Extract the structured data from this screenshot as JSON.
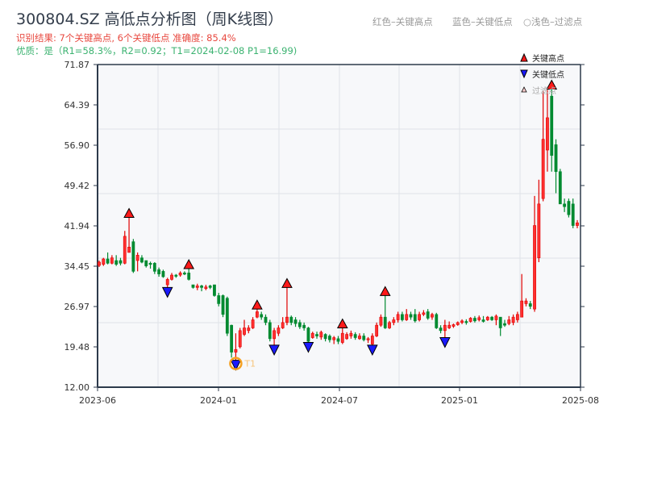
{
  "header": {
    "title": "300804.SZ 高低点分析图（周K线图）",
    "result": "识别结果: 7个关键高点, 6个关键低点   准确度: 85.4%",
    "quality": "优质：是（R1=58.3%，R2=0.92；T1=2024-02-08 P1=16.99)",
    "legend_top": [
      "红色–关键高点",
      "蓝色–关键低点",
      "○浅色–过滤点"
    ]
  },
  "chart_data": {
    "type": "candlestick",
    "title": "300804.SZ 高低点分析图（周K线图）",
    "xlabel": "",
    "ylabel": "",
    "ylim": [
      12.0,
      71.87
    ],
    "yticks": [
      "12.00",
      "19.48",
      "26.97",
      "34.45",
      "41.94",
      "49.42",
      "56.90",
      "64.39",
      "71.87"
    ],
    "xticks": [
      "2023-06",
      "2024-01",
      "2024-07",
      "2025-01",
      "2025-08"
    ],
    "grid": true,
    "legend": {
      "placement": "top-right",
      "items": [
        "关键高点",
        "关键低点",
        "过滤点"
      ]
    },
    "colors": {
      "up": "#e00000",
      "down": "#008a30",
      "high_marker": "#ff1a1a",
      "low_marker": "#1a1aff",
      "t1": "#f5a020"
    },
    "candles_ochl": [
      [
        34.6,
        35.2,
        35.5,
        34.3
      ],
      [
        34.8,
        35.8,
        36.0,
        34.5
      ],
      [
        35.8,
        35.0,
        37.0,
        34.8
      ],
      [
        35.0,
        36.0,
        36.5,
        34.8
      ],
      [
        35.5,
        34.8,
        36.5,
        34.5
      ],
      [
        35.5,
        35.0,
        36.0,
        34.6
      ],
      [
        35.0,
        40.0,
        41.0,
        34.8
      ],
      [
        37.0,
        38.0,
        43.5,
        37.0
      ],
      [
        39.0,
        33.5,
        39.5,
        33.2
      ],
      [
        35.5,
        36.5,
        37.0,
        33.5
      ],
      [
        36.0,
        35.2,
        36.5,
        35.0
      ],
      [
        35.5,
        34.5,
        35.5,
        34.2
      ],
      [
        35.0,
        34.8,
        35.3,
        34.0
      ],
      [
        35.0,
        33.5,
        35.2,
        33.0
      ],
      [
        33.8,
        33.0,
        34.2,
        32.5
      ],
      [
        33.5,
        32.5,
        33.8,
        32.3
      ],
      [
        31.0,
        32.0,
        32.3,
        30.5
      ],
      [
        32.0,
        32.8,
        33.2,
        31.8
      ],
      [
        32.8,
        32.6,
        33.0,
        32.3
      ],
      [
        32.8,
        33.2,
        33.5,
        32.5
      ],
      [
        33.2,
        33.0,
        33.5,
        32.8
      ],
      [
        33.2,
        32.0,
        34.0,
        31.8
      ],
      [
        31.0,
        30.5,
        31.0,
        30.3
      ],
      [
        30.5,
        30.8,
        31.2,
        30.0
      ],
      [
        30.8,
        30.5,
        31.0,
        29.8
      ],
      [
        30.3,
        30.6,
        31.0,
        30.0
      ],
      [
        30.8,
        30.5,
        31.0,
        30.2
      ],
      [
        31.0,
        29.0,
        31.0,
        28.8
      ],
      [
        29.0,
        27.5,
        29.5,
        27.0
      ],
      [
        29.0,
        25.5,
        29.2,
        25.0
      ],
      [
        28.5,
        22.0,
        28.8,
        21.5
      ],
      [
        23.5,
        18.5,
        23.6,
        17.5
      ],
      [
        18.5,
        19.0,
        22.0,
        16.99
      ],
      [
        19.5,
        22.5,
        23.0,
        19.2
      ],
      [
        21.8,
        23.0,
        24.5,
        21.5
      ],
      [
        22.5,
        23.0,
        23.5,
        22.0
      ],
      [
        23.0,
        24.5,
        25.0,
        22.8
      ],
      [
        25.0,
        26.0,
        26.5,
        24.8
      ],
      [
        25.5,
        25.0,
        26.0,
        24.5
      ],
      [
        25.0,
        24.0,
        25.5,
        23.5
      ],
      [
        24.0,
        21.0,
        24.5,
        20.5
      ],
      [
        21.0,
        22.5,
        23.0,
        19.8
      ],
      [
        22.0,
        23.0,
        23.5,
        21.5
      ],
      [
        23.0,
        24.0,
        25.0,
        22.8
      ],
      [
        24.0,
        25.0,
        30.5,
        23.5
      ],
      [
        25.0,
        24.0,
        25.3,
        23.5
      ],
      [
        24.5,
        23.8,
        25.0,
        23.2
      ],
      [
        24.0,
        23.2,
        24.5,
        22.8
      ],
      [
        23.5,
        23.0,
        24.0,
        22.5
      ],
      [
        23.0,
        20.5,
        23.2,
        20.3
      ],
      [
        21.2,
        22.0,
        22.3,
        21.0
      ],
      [
        21.8,
        21.5,
        22.3,
        21.0
      ],
      [
        21.3,
        22.2,
        22.5,
        20.8
      ],
      [
        21.8,
        21.0,
        22.0,
        20.5
      ],
      [
        21.5,
        20.8,
        21.8,
        20.3
      ],
      [
        20.8,
        21.2,
        21.5,
        20.0
      ],
      [
        21.0,
        20.5,
        21.5,
        20.0
      ],
      [
        20.3,
        22.0,
        23.0,
        20.0
      ],
      [
        21.0,
        21.8,
        22.2,
        20.8
      ],
      [
        21.5,
        22.0,
        22.5,
        21.0
      ],
      [
        21.8,
        21.2,
        22.2,
        20.8
      ],
      [
        21.0,
        21.5,
        22.0,
        20.8
      ],
      [
        21.5,
        20.8,
        22.0,
        20.5
      ],
      [
        20.8,
        21.0,
        21.3,
        20.2
      ],
      [
        20.0,
        21.5,
        22.0,
        19.8
      ],
      [
        21.5,
        23.5,
        24.0,
        21.3
      ],
      [
        23.5,
        25.0,
        25.5,
        23.2
      ],
      [
        25.0,
        23.0,
        29.0,
        22.8
      ],
      [
        23.0,
        24.0,
        24.3,
        22.8
      ],
      [
        24.0,
        24.5,
        25.0,
        23.5
      ],
      [
        24.5,
        25.5,
        26.0,
        24.0
      ],
      [
        25.5,
        24.5,
        26.0,
        24.2
      ],
      [
        24.5,
        25.5,
        26.5,
        24.3
      ],
      [
        25.5,
        25.0,
        26.0,
        24.5
      ],
      [
        25.5,
        24.3,
        26.5,
        24.0
      ],
      [
        24.5,
        25.5,
        26.0,
        24.2
      ],
      [
        25.5,
        25.8,
        26.3,
        25.2
      ],
      [
        26.0,
        24.8,
        26.5,
        24.5
      ],
      [
        25.0,
        25.5,
        25.8,
        24.5
      ],
      [
        25.5,
        23.0,
        25.8,
        22.8
      ],
      [
        23.0,
        22.5,
        23.5,
        22.0
      ],
      [
        22.5,
        23.5,
        24.5,
        21.2
      ],
      [
        23.0,
        23.5,
        24.2,
        22.8
      ],
      [
        23.3,
        23.6,
        23.8,
        23.0
      ],
      [
        23.6,
        24.0,
        24.2,
        23.4
      ],
      [
        24.0,
        24.3,
        24.6,
        23.7
      ],
      [
        24.2,
        24.0,
        24.6,
        23.6
      ],
      [
        24.2,
        24.8,
        25.0,
        24.0
      ],
      [
        24.8,
        24.3,
        25.2,
        24.0
      ],
      [
        24.5,
        24.9,
        25.3,
        24.2
      ],
      [
        24.5,
        24.2,
        25.2,
        24.0
      ],
      [
        24.5,
        25.0,
        25.2,
        24.3
      ],
      [
        25.0,
        24.5,
        25.2,
        24.3
      ],
      [
        24.5,
        25.2,
        25.5,
        23.5
      ],
      [
        25.0,
        23.0,
        25.0,
        21.5
      ],
      [
        23.8,
        23.5,
        24.5,
        23.2
      ],
      [
        23.8,
        24.5,
        25.2,
        23.5
      ],
      [
        24.0,
        25.0,
        25.5,
        23.5
      ],
      [
        24.5,
        25.5,
        26.0,
        24.0
      ],
      [
        25.0,
        28.0,
        33.0,
        25.0
      ],
      [
        27.5,
        28.0,
        28.5,
        27.0
      ],
      [
        27.5,
        27.0,
        28.0,
        26.5
      ],
      [
        26.5,
        42.0,
        47.5,
        26.0
      ],
      [
        36.0,
        46.0,
        50.5,
        35.2
      ],
      [
        47.0,
        58.0,
        67.0,
        46.5
      ],
      [
        56.0,
        62.0,
        67.3,
        52.0
      ],
      [
        66.0,
        55.0,
        67.3,
        52.0
      ],
      [
        57.0,
        52.0,
        58.0,
        48.0
      ],
      [
        52.0,
        46.0,
        52.5,
        46.0
      ],
      [
        46.0,
        45.5,
        47.0,
        44.5
      ],
      [
        46.5,
        44.0,
        47.0,
        43.5
      ],
      [
        46.0,
        42.0,
        47.0,
        41.5
      ],
      [
        42.0,
        42.5,
        43.0,
        41.5
      ]
    ],
    "key_highs": [
      7,
      21,
      37,
      44,
      57,
      67,
      106
    ],
    "key_lows": [
      16,
      32,
      41,
      49,
      64,
      81
    ],
    "t1": {
      "index": 32,
      "label": "T1",
      "date": "2024-02-08",
      "price": 16.99
    }
  }
}
